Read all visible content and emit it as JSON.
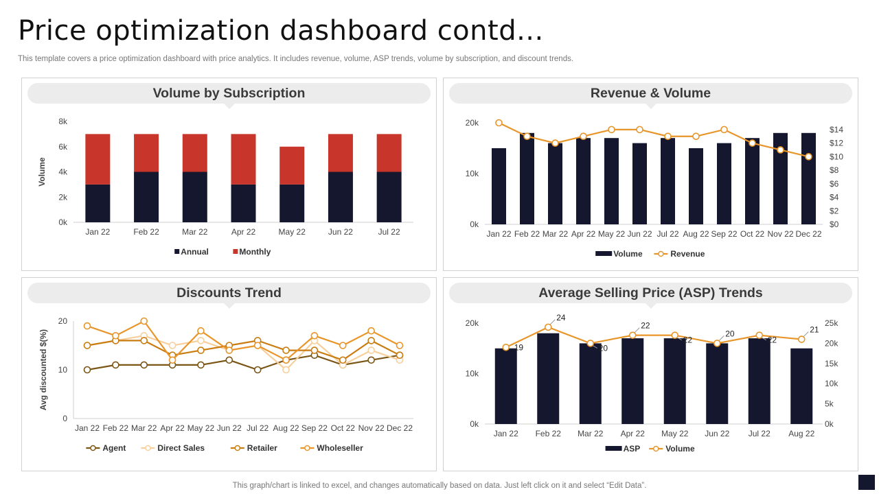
{
  "page": {
    "title": "Price optimization dashboard contd...",
    "subtitle": "This template covers a price optimization dashboard with price analytics. It includes revenue, volume, ASP trends, volume by subscription, and discount trends.",
    "footer": "This graph/chart is linked to excel,  and changes automatically based on data. Just left click on it and select “Edit Data”."
  },
  "colors": {
    "navy": "#14172e",
    "red": "#c8352a",
    "orange": "#e8952a",
    "brown": "#7a5514",
    "peach": "#f7cf9d",
    "darkorange": "#c97c10",
    "axis": "#444444"
  },
  "panels": {
    "volume_subscription": {
      "title": "Volume by Subscription"
    },
    "revenue_volume": {
      "title": "Revenue & Volume"
    },
    "discounts_trend": {
      "title": "Discounts Trend"
    },
    "asp_trends": {
      "title": "Average Selling Price (ASP) Trends"
    }
  },
  "chart_data": [
    {
      "id": "volume_subscription",
      "type": "bar",
      "stacked": true,
      "categories": [
        "Jan 22",
        "Feb 22",
        "Mar 22",
        "Apr 22",
        "May 22",
        "Jun 22",
        "Jul 22"
      ],
      "series": [
        {
          "name": "Annual",
          "color": "#14172e",
          "values": [
            3000,
            4000,
            4000,
            3000,
            3000,
            4000,
            4000
          ]
        },
        {
          "name": "Monthly",
          "color": "#c8352a",
          "values": [
            4000,
            3000,
            3000,
            4000,
            3000,
            3000,
            3000
          ]
        }
      ],
      "ylabel": "Volume",
      "ylim": [
        0,
        8000
      ],
      "yticks": [
        0,
        2000,
        4000,
        6000,
        8000
      ],
      "yticklabels": [
        "0k",
        "2k",
        "4k",
        "6k",
        "8k"
      ],
      "legend": "bottom"
    },
    {
      "id": "revenue_volume",
      "type": "bar",
      "categories": [
        "Jan 22",
        "Feb 22",
        "Mar 22",
        "Apr 22",
        "May 22",
        "Jun 22",
        "Jul 22",
        "Aug 22",
        "Sep 22",
        "Oct 22",
        "Nov 22",
        "Dec 22"
      ],
      "series": [
        {
          "name": "Volume",
          "type": "bar",
          "axis": "left",
          "color": "#14172e",
          "values": [
            15000,
            18000,
            16000,
            17000,
            17000,
            16000,
            17000,
            15000,
            16000,
            17000,
            18000,
            18000
          ]
        },
        {
          "name": "Revenue",
          "type": "line",
          "axis": "right",
          "color": "#e8952a",
          "values": [
            15,
            13,
            12,
            13,
            14,
            14,
            13,
            13,
            14,
            12,
            11,
            10
          ]
        }
      ],
      "ylim": [
        0,
        20000
      ],
      "yticks": [
        0,
        10000,
        20000
      ],
      "yticklabels": [
        "0k",
        "10k",
        "20k"
      ],
      "y2lim": [
        0,
        15
      ],
      "y2ticks": [
        0,
        2,
        4,
        6,
        8,
        10,
        12,
        14
      ],
      "y2ticklabels": [
        "$0",
        "$2",
        "$4",
        "$6",
        "$8",
        "$10",
        "$12",
        "$14"
      ],
      "legend": "bottom"
    },
    {
      "id": "discounts_trend",
      "type": "line",
      "categories": [
        "Jan 22",
        "Feb 22",
        "Mar 22",
        "Apr 22",
        "May 22",
        "Jun 22",
        "Jul 22",
        "Aug 22",
        "Sep 22",
        "Oct 22",
        "Nov 22",
        "Dec 22"
      ],
      "series": [
        {
          "name": "Agent",
          "color": "#7a5514",
          "values": [
            10,
            11,
            11,
            11,
            11,
            12,
            10,
            12,
            13,
            11,
            12,
            13
          ]
        },
        {
          "name": "Direct Sales",
          "color": "#f7cf9d",
          "values": [
            15,
            16,
            17,
            15,
            16,
            14,
            15,
            10,
            16,
            11,
            14,
            12
          ]
        },
        {
          "name": "Retailer",
          "color": "#c97c10",
          "values": [
            15,
            16,
            16,
            13,
            14,
            15,
            16,
            14,
            14,
            12,
            16,
            13
          ]
        },
        {
          "name": "Wholeseller",
          "color": "#e8952a",
          "values": [
            19,
            17,
            20,
            12,
            18,
            14,
            15,
            12,
            17,
            15,
            18,
            15
          ]
        }
      ],
      "ylabel": "Avg discounted $(%)",
      "ylim": [
        0,
        20
      ],
      "yticks": [
        0,
        10,
        20
      ],
      "yticklabels": [
        "0",
        "10",
        "20"
      ],
      "legend": "bottom"
    },
    {
      "id": "asp_trends",
      "type": "bar",
      "categories": [
        "Jan 22",
        "Feb 22",
        "Mar 22",
        "Apr 22",
        "May 22",
        "Jun 22",
        "Jul 22",
        "Aug 22"
      ],
      "series": [
        {
          "name": "ASP",
          "type": "bar",
          "axis": "left",
          "color": "#14172e",
          "values": [
            15000,
            18000,
            16000,
            17000,
            17000,
            16000,
            17000,
            15000
          ]
        },
        {
          "name": "Volume",
          "type": "line",
          "axis": "right",
          "color": "#e8952a",
          "values": [
            19,
            24,
            20,
            22,
            22,
            20,
            22,
            21
          ],
          "labels": [
            "19",
            "24",
            "20",
            "22",
            "22",
            "20",
            "22",
            "21"
          ]
        }
      ],
      "ylim": [
        0,
        20000
      ],
      "yticks": [
        0,
        10000,
        20000
      ],
      "yticklabels": [
        "0k",
        "10k",
        "20k"
      ],
      "y2lim": [
        0,
        25
      ],
      "y2ticks": [
        0,
        5,
        10,
        15,
        20,
        25
      ],
      "y2ticklabels": [
        "0k",
        "5k",
        "10k",
        "15k",
        "20k",
        "25k"
      ],
      "legend": "bottom"
    }
  ]
}
